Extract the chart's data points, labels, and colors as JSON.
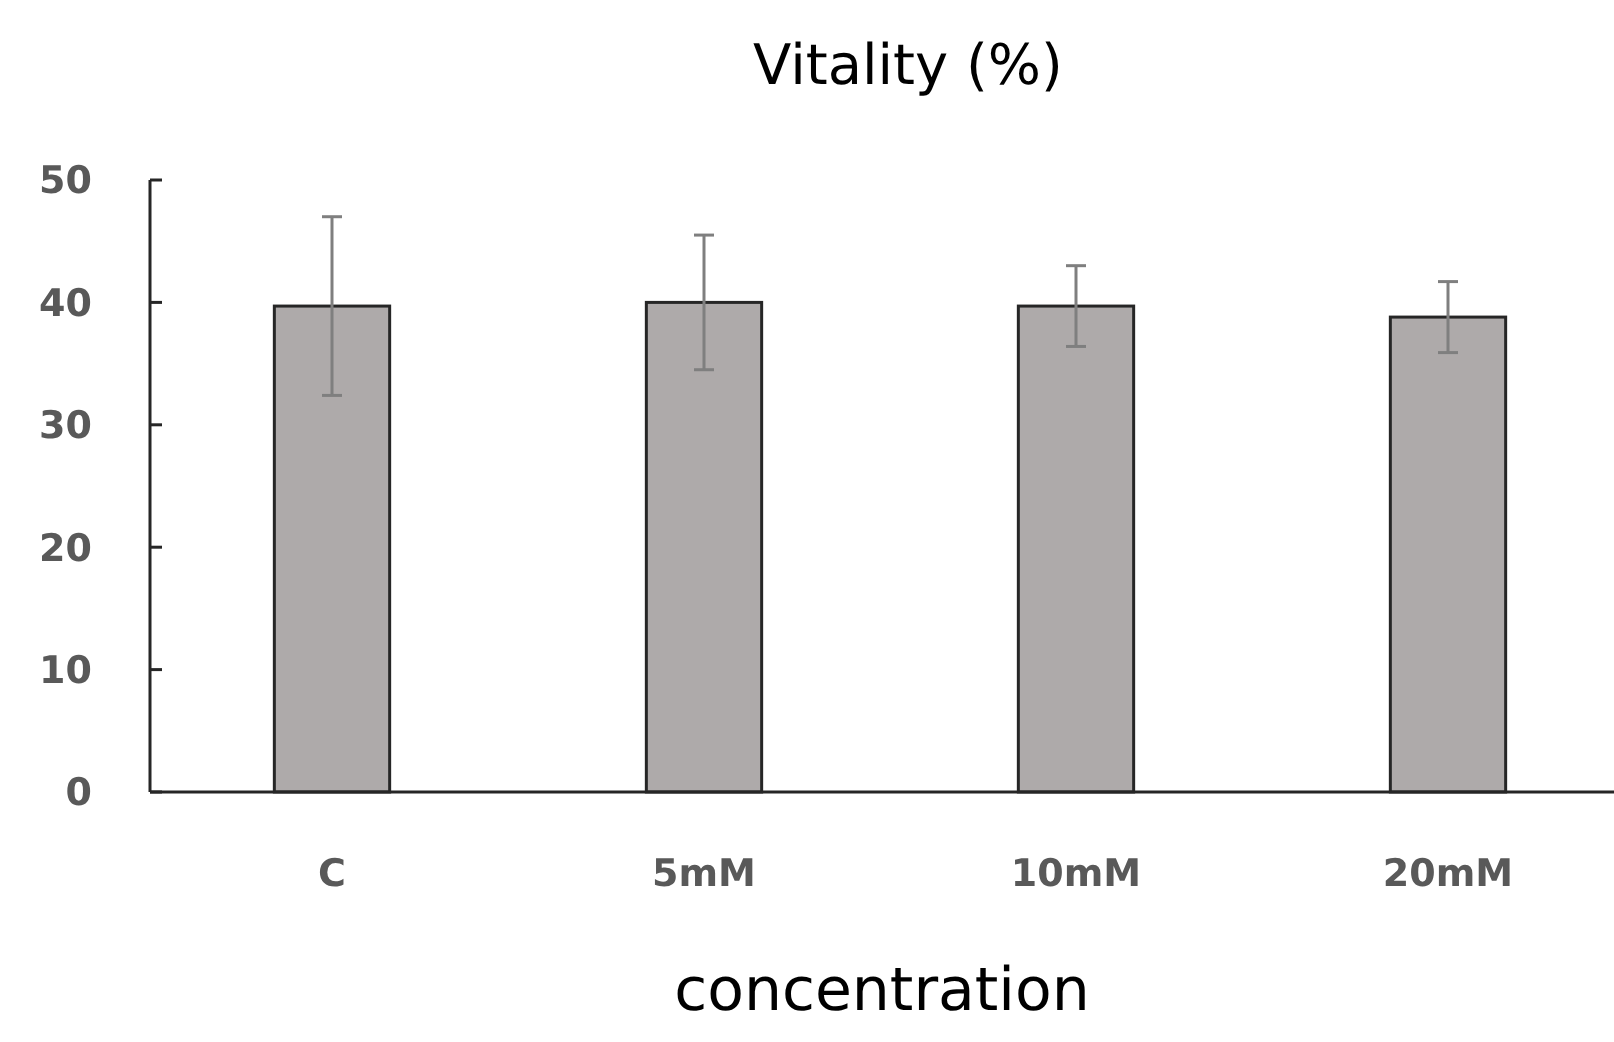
{
  "chart_data": {
    "type": "bar",
    "title": "Vitality (%)",
    "xlabel": "concentration",
    "categories": [
      "C",
      "5mM",
      "10mM",
      "20mM"
    ],
    "values": [
      39.7,
      40.0,
      39.7,
      38.8
    ],
    "errors": [
      7.3,
      5.5,
      3.3,
      2.9
    ],
    "color": "#aeaaaa",
    "ylim": [
      0,
      50
    ],
    "yticks": [
      0,
      10,
      20,
      30,
      40,
      50
    ],
    "grid": false
  }
}
